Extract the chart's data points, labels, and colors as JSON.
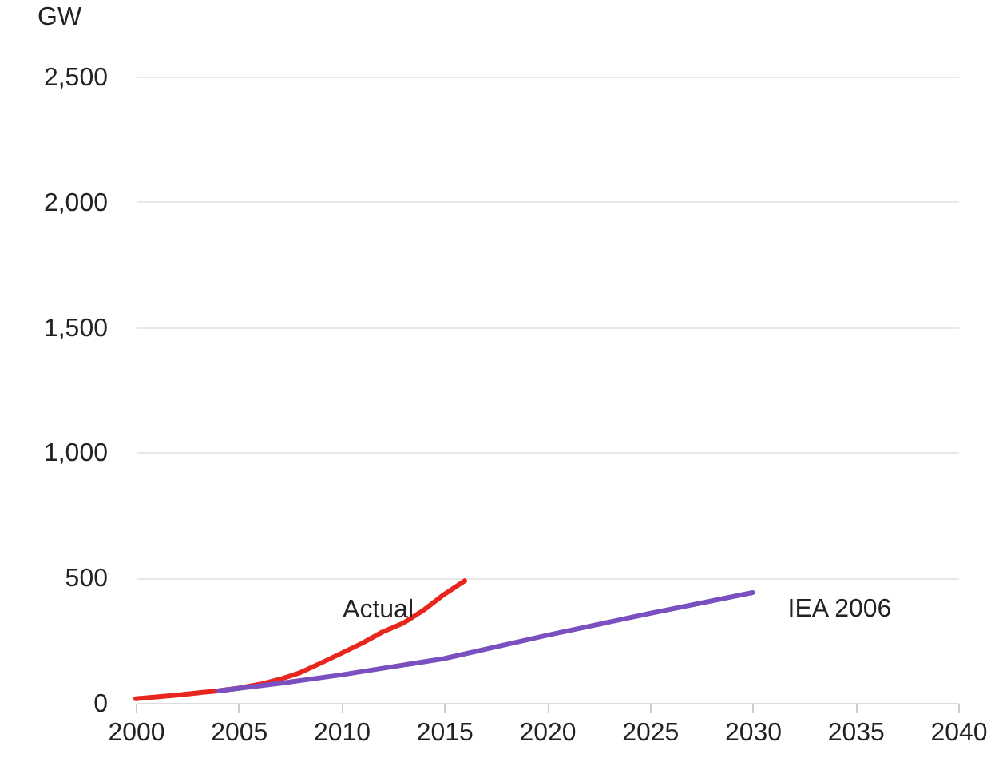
{
  "chart_data": {
    "type": "line",
    "ylabel": "GW",
    "x": [
      2000,
      2001,
      2002,
      2003,
      2004,
      2005,
      2006,
      2007,
      2008,
      2009,
      2010,
      2011,
      2012,
      2013,
      2014,
      2015,
      2016
    ],
    "series": [
      {
        "name": "Actual",
        "color": "#e8261e",
        "values": [
          17,
          24,
          31,
          40,
          48,
          59,
          74,
          94,
          121,
          159,
          198,
          238,
          283,
          318,
          370,
          433,
          487
        ]
      },
      {
        "name": "IEA 2006",
        "color": "#7a4fbf",
        "x": [
          2004,
          2005,
          2007,
          2010,
          2015,
          2020,
          2025,
          2030
        ],
        "values": [
          48,
          58,
          78,
          112,
          177,
          270,
          357,
          440
        ]
      }
    ],
    "xlim": [
      2000,
      2040
    ],
    "xticks": [
      2000,
      2005,
      2010,
      2015,
      2020,
      2025,
      2030,
      2035,
      2040
    ],
    "ylim": [
      0,
      2500
    ],
    "yticks": [
      0,
      500,
      {
        "value": 1000,
        "label": "1,000"
      },
      {
        "value": 1500,
        "label": "1,500"
      },
      {
        "value": 2000,
        "label": "2,000"
      },
      {
        "value": 2500,
        "label": "2,500"
      }
    ],
    "grid": "y",
    "legend": false,
    "marker": "none",
    "line_style": "solid"
  }
}
